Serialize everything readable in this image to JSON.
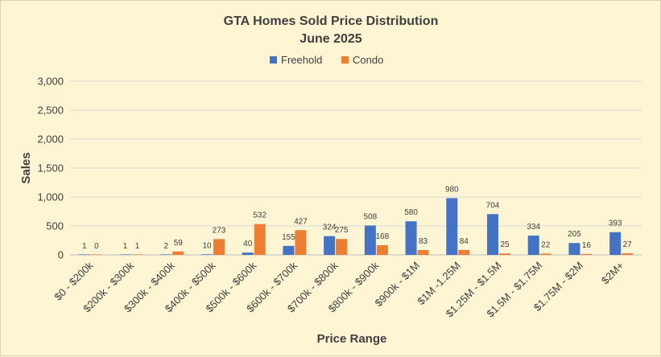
{
  "chart_data": {
    "type": "bar",
    "title": "GTA Homes Sold Price Distribution",
    "subtitle": "June 2025",
    "xlabel": "Price Range",
    "ylabel": "Sales",
    "ylim": [
      0,
      3000
    ],
    "yticks": [
      0,
      500,
      1000,
      1500,
      2000,
      2500,
      3000
    ],
    "ytick_labels": [
      "0",
      "500",
      "1,000",
      "1,500",
      "2,000",
      "2,500",
      "3,000"
    ],
    "grid": true,
    "legend_position": "top",
    "categories": [
      "$0 - $200k",
      "$200k - $300k",
      "$300k - $400k",
      "$400k - $500k",
      "$500k - $600k",
      "$600k - $700k",
      "$700k - $800k",
      "$800k - $900k",
      "$900k - $1M",
      "$1M -1.25M",
      "$1.25M - $1.5M",
      "$1.5M - $1.75M",
      "$1.75M - $2M",
      "$2M+"
    ],
    "series": [
      {
        "name": "Freehold",
        "color": "#4472c4",
        "values": [
          1,
          1,
          2,
          10,
          40,
          155,
          324,
          508,
          580,
          980,
          704,
          334,
          205,
          393
        ]
      },
      {
        "name": "Condo",
        "color": "#ed7d31",
        "values": [
          0,
          1,
          59,
          273,
          532,
          427,
          275,
          168,
          83,
          84,
          25,
          22,
          16,
          27
        ]
      }
    ]
  }
}
